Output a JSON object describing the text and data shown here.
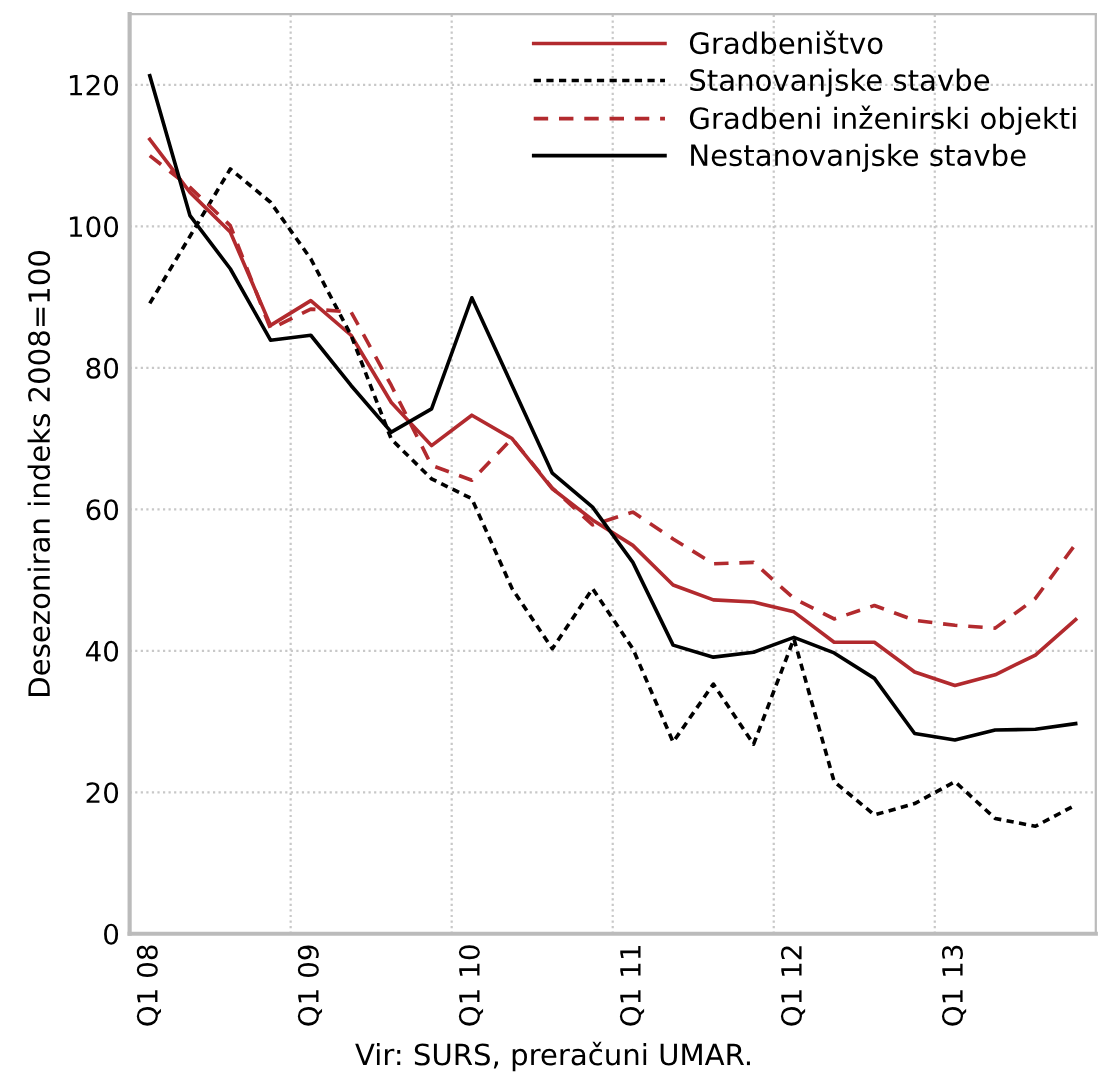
{
  "chart_data": {
    "type": "line",
    "ylabel": "Desezoniran indeks 2008=100",
    "annotations": [
      "Vir: SURS, preračuni UMAR."
    ],
    "categories": [
      "Q1 08",
      null,
      null,
      null,
      "Q1 09",
      null,
      null,
      null,
      "Q1 10",
      null,
      null,
      null,
      "Q1 11",
      null,
      null,
      null,
      "Q1 12",
      null,
      null,
      null,
      "Q1 13",
      null,
      null,
      null
    ],
    "series": [
      {
        "name": "Gradbeništvo",
        "color": "#b22a2e",
        "line_style": "solid",
        "values": [
          112.3,
          104.8,
          99.2,
          86,
          89.5,
          84.6,
          75.1,
          69,
          73.3,
          70,
          62.9,
          58.5,
          54.9,
          49.3,
          47.2,
          46.9,
          45.5,
          41.2,
          41.2,
          37,
          35.1,
          36.6,
          39.4,
          44.4
        ]
      },
      {
        "name": "Stanovanjske stavbe",
        "color": "#000000",
        "line_style": "dotted",
        "values": [
          89.1,
          98.6,
          108.1,
          103.4,
          95.4,
          84.6,
          69.9,
          64.3,
          61.5,
          48.8,
          40.3,
          48.8,
          40.3,
          27.1,
          35.3,
          26.8,
          41.7,
          21.5,
          16.8,
          18.4,
          21.5,
          16.3,
          15.2,
          18.2
        ]
      },
      {
        "name": "Gradbeni inženirski objekti",
        "color": "#b22a2e",
        "line_style": "dashed",
        "values": [
          110,
          105.5,
          100.1,
          85.5,
          88.3,
          87.9,
          77.5,
          66.2,
          64.1,
          70,
          63,
          57.8,
          59.6,
          55.8,
          52.3,
          52.5,
          47.4,
          44.5,
          46.4,
          44.3,
          43.6,
          43.2,
          47.4,
          55.1
        ]
      },
      {
        "name": "Nestanovanjske stavbe",
        "color": "#000000",
        "line_style": "solid",
        "values": [
          121.3,
          101.5,
          94,
          83.9,
          84.6,
          77.5,
          70.9,
          74.2,
          89.9,
          77.5,
          65.1,
          60.3,
          52.5,
          40.8,
          39.1,
          39.8,
          41.9,
          39.7,
          36.1,
          28.3,
          27.4,
          28.8,
          28.9,
          29.7
        ]
      }
    ],
    "ylim": [
      0,
      130
    ],
    "yticks": [
      0,
      20,
      40,
      60,
      80,
      100,
      120
    ],
    "grid": true,
    "legend": "top right",
    "marker": "none"
  }
}
